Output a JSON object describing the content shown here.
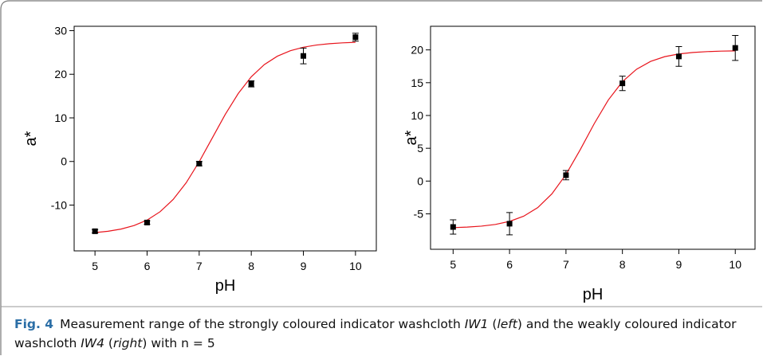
{
  "chart_data": [
    {
      "type": "scatter",
      "xlabel": "pH",
      "ylabel": "a*",
      "xlim": [
        4.6,
        10.4
      ],
      "xticks": [
        5,
        6,
        7,
        8,
        9,
        10
      ],
      "ylim": [
        -20.5,
        31
      ],
      "yticks": [
        -10,
        0,
        10,
        20,
        30
      ],
      "series": [
        {
          "color": "#000000",
          "marker": "square",
          "x": [
            5,
            6,
            7,
            8,
            9,
            10
          ],
          "values": [
            -16,
            -14,
            -0.5,
            17.8,
            24.2,
            28.5
          ],
          "errors": [
            0.4,
            0.4,
            0.5,
            0.7,
            1.8,
            0.9
          ]
        },
        {
          "color": "#e8141c",
          "marker": "none",
          "x": [
            5,
            5.25,
            5.5,
            5.75,
            6,
            6.25,
            6.5,
            6.75,
            7,
            7.25,
            7.5,
            7.75,
            8,
            8.25,
            8.5,
            8.75,
            9,
            9.25,
            9.5,
            9.75,
            10
          ],
          "values": [
            -16.31,
            -16.0,
            -15.5,
            -14.7,
            -13.44,
            -11.52,
            -8.72,
            -4.89,
            -0.07,
            5.35,
            10.78,
            15.59,
            19.42,
            22.22,
            24.14,
            25.4,
            26.2,
            26.7,
            27.01,
            27.2,
            27.32
          ]
        }
      ]
    },
    {
      "type": "scatter",
      "xlabel": "pH",
      "ylabel": "a*",
      "xlim": [
        4.6,
        10.35
      ],
      "xticks": [
        5,
        6,
        7,
        8,
        9,
        10
      ],
      "ylim": [
        -10.4,
        23.6
      ],
      "yticks": [
        -5,
        0,
        5,
        10,
        15,
        20
      ],
      "series": [
        {
          "color": "#000000",
          "marker": "square",
          "x": [
            5,
            6,
            7,
            8,
            9,
            10
          ],
          "values": [
            -7,
            -6.5,
            0.9,
            14.9,
            19,
            20.3
          ],
          "errors": [
            1.1,
            1.7,
            0.7,
            1.1,
            1.5,
            1.9
          ]
        },
        {
          "color": "#e8141c",
          "marker": "none",
          "x": [
            5,
            5.25,
            5.5,
            5.75,
            6,
            6.25,
            6.5,
            6.75,
            7,
            7.25,
            7.5,
            7.75,
            8,
            8.25,
            8.5,
            8.75,
            9,
            9.25,
            9.5,
            9.75,
            10
          ],
          "values": [
            -7.1,
            -7.02,
            -6.87,
            -6.61,
            -6.15,
            -5.36,
            -4.04,
            -1.96,
            1.01,
            4.74,
            8.74,
            12.36,
            15.15,
            17.05,
            18.25,
            18.97,
            19.38,
            19.61,
            19.74,
            19.81,
            19.85
          ]
        }
      ]
    }
  ],
  "caption": {
    "label": "Fig. 4",
    "parts": [
      {
        "text": "Measurement range of the strongly coloured indicator washcloth "
      },
      {
        "text": "IW1",
        "italic": true
      },
      {
        "text": " ("
      },
      {
        "text": "left",
        "italic": true
      },
      {
        "text": ") and the weakly coloured indicator washcloth "
      },
      {
        "text": "IW4",
        "italic": true
      },
      {
        "text": " ("
      },
      {
        "text": "right",
        "italic": true
      },
      {
        "text": ") with n = 5"
      }
    ]
  }
}
